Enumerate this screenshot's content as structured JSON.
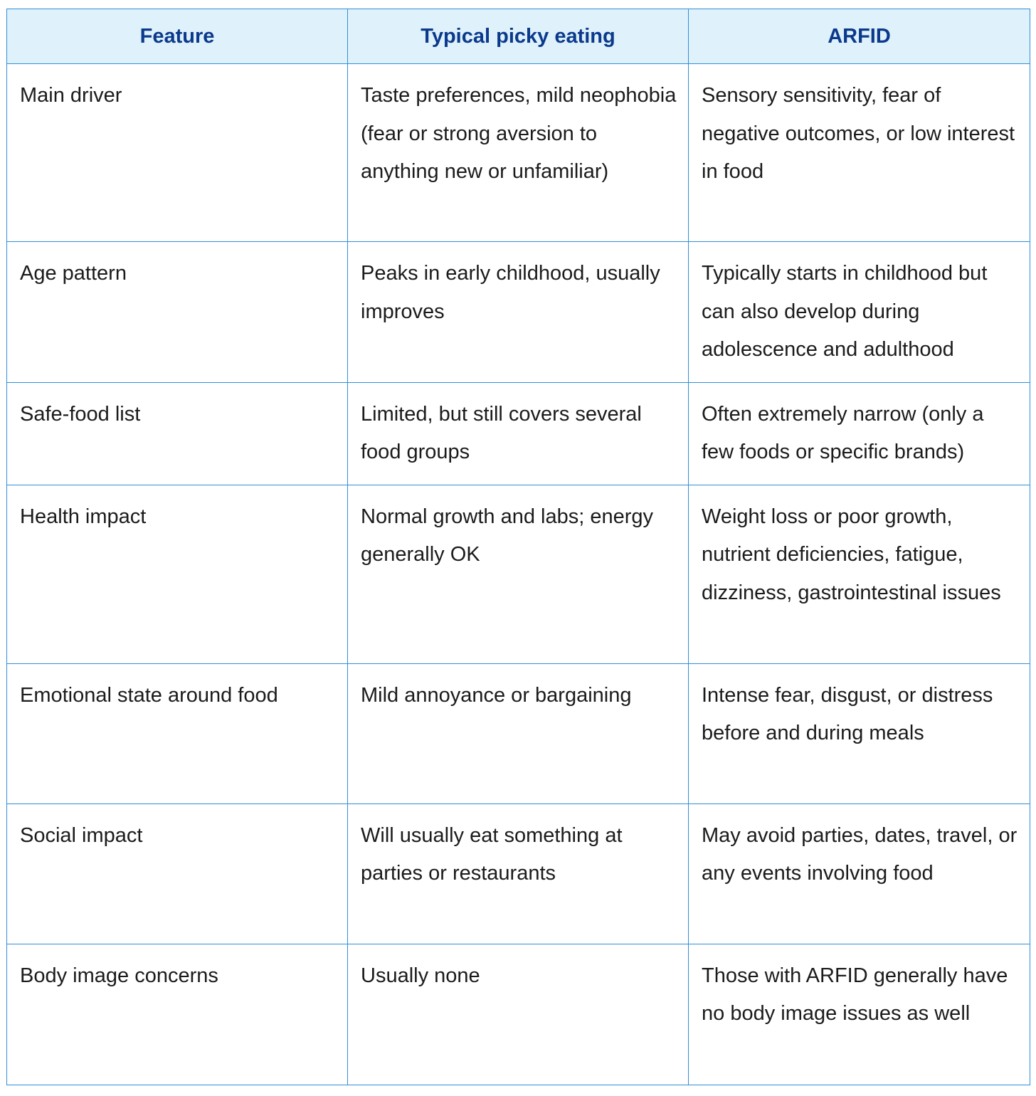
{
  "headers": [
    "Feature",
    "Typical picky eating",
    "ARFID"
  ],
  "rows": [
    {
      "feature": "Main driver",
      "picky": "Taste preferences, mild neophobia (fear or strong aversion to anything new or unfamiliar)",
      "arfid": "Sensory sensitivity, fear of negative outcomes, or low interest in food"
    },
    {
      "feature": "Age pattern",
      "picky": "Peaks in early childhood, usually improves",
      "arfid": "Typically starts in childhood but can also develop during adolescence and adulthood"
    },
    {
      "feature": "Safe-food list",
      "picky": "Limited, but still covers several food groups",
      "arfid": "Often extremely narrow (only a few foods or specific brands)"
    },
    {
      "feature": "Health impact",
      "picky": "Normal growth and labs; energy generally OK",
      "arfid": "Weight loss or poor growth, nutrient deficiencies, fatigue, dizziness, gastrointestinal issues"
    },
    {
      "feature": "Emotional state around food",
      "picky": "Mild annoyance or bargaining",
      "arfid": "Intense fear, disgust, or distress before and during meals"
    },
    {
      "feature": "Social impact",
      "picky": "Will usually eat something at parties or restaurants",
      "arfid": "May avoid parties, dates, travel, or any events involving food"
    },
    {
      "feature": "Body image concerns",
      "picky": "Usually none",
      "arfid": "Those with ARFID generally have no body image issues as well"
    }
  ],
  "colors": {
    "header_bg": "#dff1fb",
    "header_text": "#0b3a8c",
    "border": "#2f8fd8",
    "body_text": "#1b1b1b"
  }
}
